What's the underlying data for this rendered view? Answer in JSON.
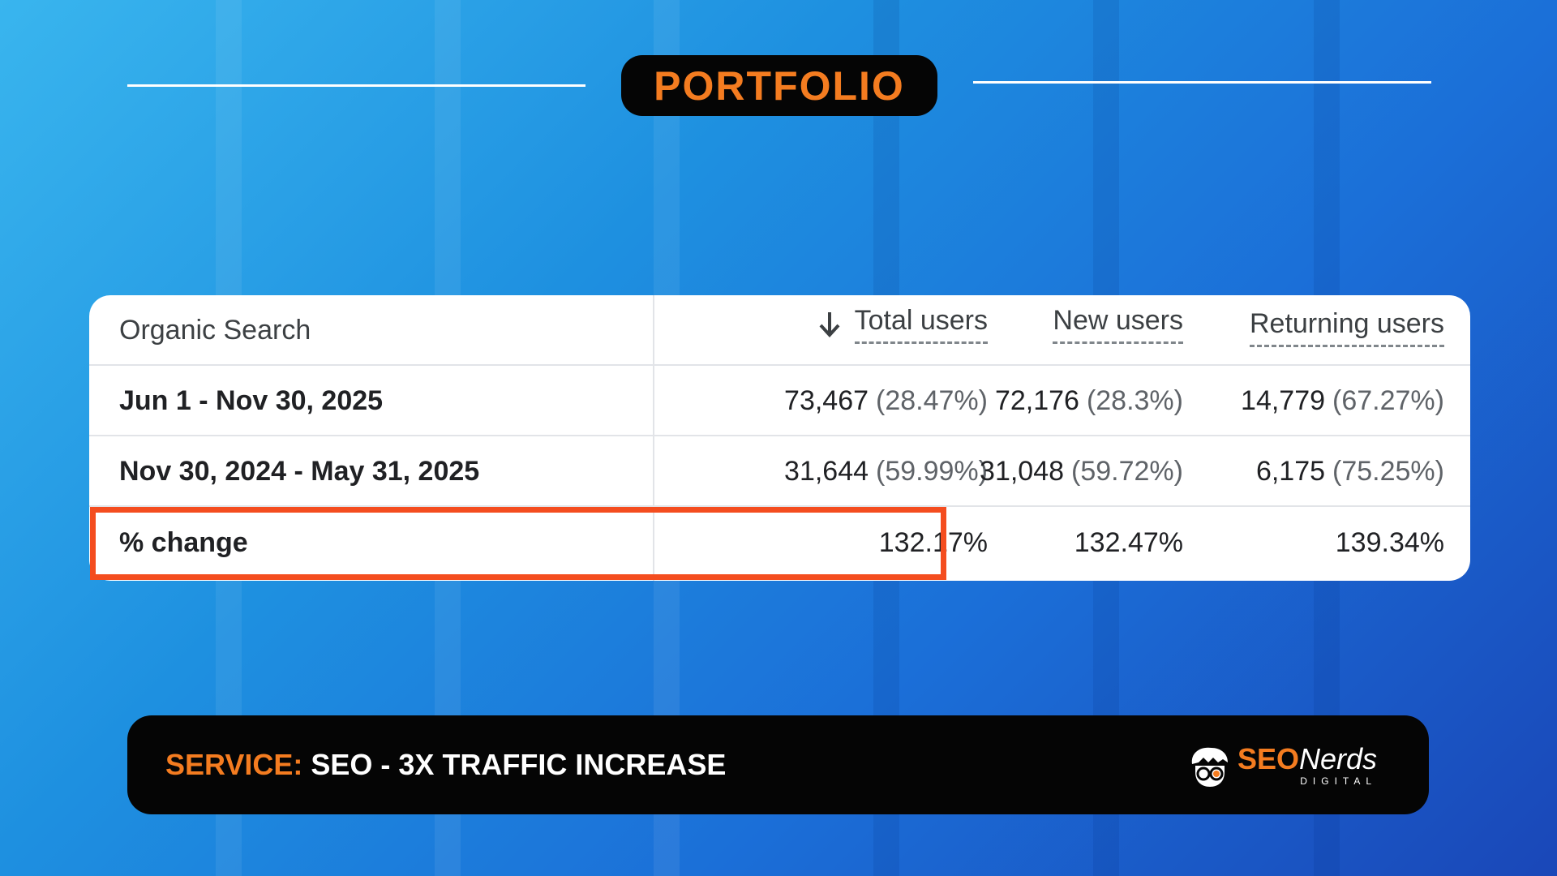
{
  "header": {
    "title": "PORTFOLIO"
  },
  "table": {
    "header": {
      "dimension": "Organic Search",
      "sort_icon": "arrow-down-icon",
      "columns": [
        "Total users",
        "New users",
        "Returning users"
      ]
    },
    "rows": [
      {
        "label": "Jun 1 - Nov 30, 2025",
        "cells": [
          {
            "value": "73,467",
            "pct": "(28.47%)"
          },
          {
            "value": "72,176",
            "pct": "(28.3%)"
          },
          {
            "value": "14,779",
            "pct": "(67.27%)"
          }
        ]
      },
      {
        "label": "Nov 30, 2024 - May 31, 2025",
        "cells": [
          {
            "value": "31,644",
            "pct": "(59.99%)"
          },
          {
            "value": "31,048",
            "pct": "(59.72%)"
          },
          {
            "value": "6,175",
            "pct": "(75.25%)"
          }
        ]
      }
    ],
    "change_row": {
      "label": "% change",
      "values": [
        "132.17%",
        "132.47%",
        "139.34%"
      ]
    },
    "highlight_color": "#f44d1f"
  },
  "footer": {
    "service_label": "SERVICE:",
    "service_value": "SEO - 3X TRAFFIC INCREASE",
    "logo": {
      "icon": "nerd-face-icon",
      "word1": "SEO",
      "word2": "Nerds",
      "sub": "DIGITAL"
    }
  },
  "colors": {
    "accent": "#f47c20",
    "bar": "#050505"
  }
}
